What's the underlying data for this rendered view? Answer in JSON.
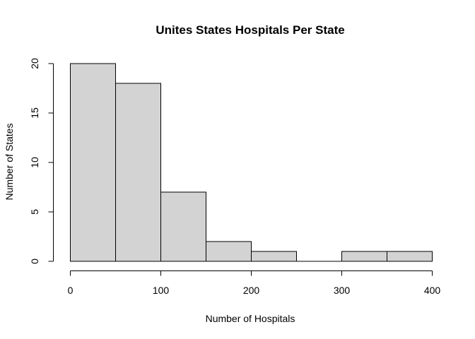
{
  "chart_data": {
    "type": "bar",
    "title": "Unites States Hospitals Per State",
    "xlabel": "Number of Hospitals",
    "ylabel": "Number of States",
    "bin_edges": [
      0,
      50,
      100,
      150,
      200,
      250,
      300,
      350,
      400
    ],
    "values": [
      20,
      18,
      7,
      2,
      1,
      0,
      1,
      1
    ],
    "xlim": [
      0,
      400
    ],
    "ylim": [
      0,
      20
    ],
    "x_ticks": [
      0,
      100,
      200,
      300,
      400
    ],
    "x_tick_labels": [
      "0",
      "100",
      "200",
      "300",
      "400"
    ],
    "y_ticks": [
      0,
      5,
      10,
      15,
      20
    ],
    "y_tick_labels": [
      "0",
      "5",
      "10",
      "15",
      "20"
    ],
    "bar_fill": "#d3d3d3",
    "bar_stroke": "#000000",
    "grid": false
  }
}
